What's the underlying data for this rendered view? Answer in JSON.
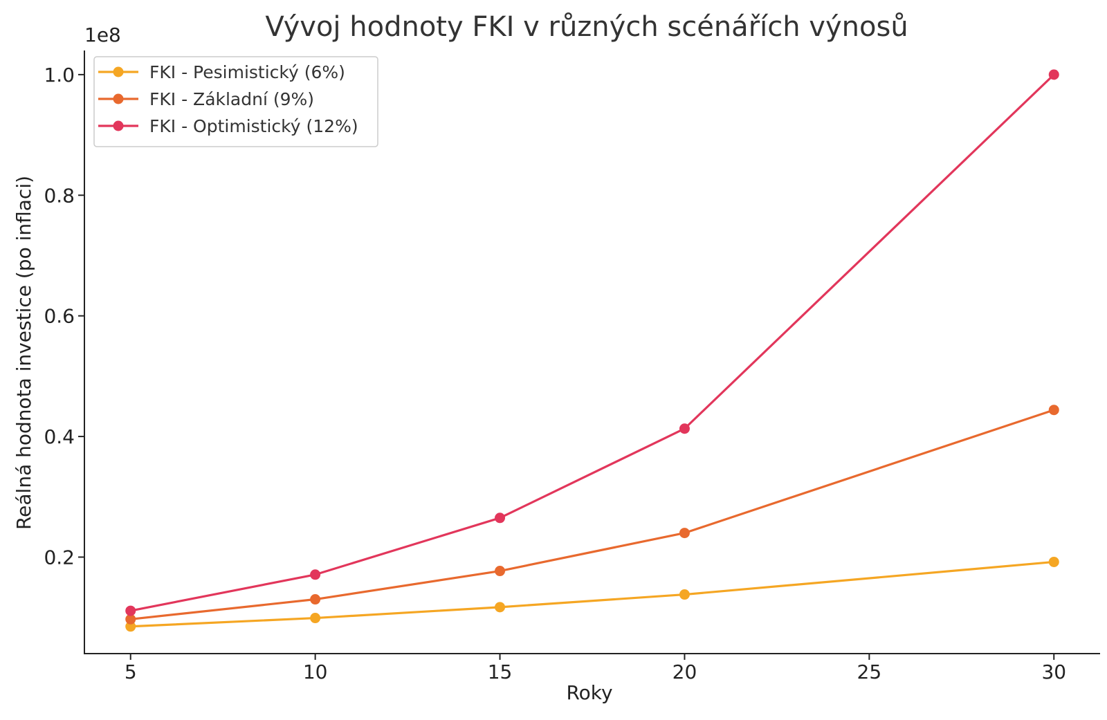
{
  "chart_data": {
    "type": "line",
    "title": "Vývoj hodnoty FKI v různých scénářích výnosů",
    "xlabel": "Roky",
    "ylabel": "Reálná hodnota investice (po inflaci)",
    "y_offset_label": "1e8",
    "x": [
      5,
      10,
      15,
      20,
      30
    ],
    "x_ticks": [
      5,
      10,
      15,
      20,
      25,
      30
    ],
    "x_tick_labels": [
      "5",
      "10",
      "15",
      "20",
      "25",
      "30"
    ],
    "xlim": [
      3.75,
      31.25
    ],
    "y_ticks": [
      0.2,
      0.4,
      0.6,
      0.8,
      1.0
    ],
    "y_tick_labels": [
      "0.2",
      "0.4",
      "0.6",
      "0.8",
      "1.0"
    ],
    "ylim": [
      0.04,
      1.04
    ],
    "y_unit_multiplier": 100000000,
    "grid": false,
    "legend_position": "top-left",
    "series": [
      {
        "name": "FKI - Pesimistický (6%)",
        "color": "#F5A623",
        "values": [
          0.085,
          0.099,
          0.117,
          0.138,
          0.192
        ]
      },
      {
        "name": "FKI - Základní (9%)",
        "color": "#E8692E",
        "values": [
          0.097,
          0.13,
          0.177,
          0.24,
          0.444
        ]
      },
      {
        "name": "FKI - Optimistický (12%)",
        "color": "#E2365B",
        "values": [
          0.111,
          0.171,
          0.265,
          0.413,
          1.0
        ]
      }
    ]
  }
}
